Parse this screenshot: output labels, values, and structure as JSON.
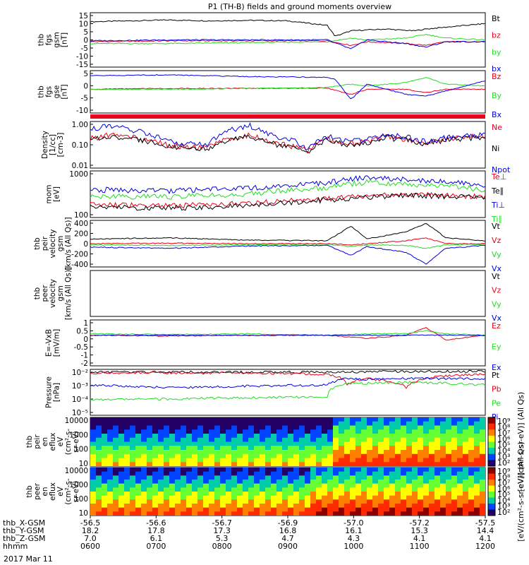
{
  "title": "P1 (TH-B) fields and ground moments overview",
  "date_label": "2017 Mar 11",
  "colors": {
    "black": "#000000",
    "red": "#e8001c",
    "green": "#22dd22",
    "blue": "#0000e0"
  },
  "chart_data": [
    {
      "type": "line",
      "id": "fgs_gsm",
      "ylabel": [
        "thb",
        "fgs",
        "gsm",
        "[nT]"
      ],
      "ylim": [
        -15,
        15
      ],
      "yticks": [
        "15",
        "10",
        "5",
        "0",
        "-5",
        "-10",
        "-15"
      ],
      "series": [
        {
          "name": "Bt",
          "color": "#000000",
          "x": [
            0,
            0.1,
            0.2,
            0.3,
            0.4,
            0.5,
            0.6,
            0.62,
            0.66,
            0.7,
            0.75,
            0.78,
            0.82,
            0.85,
            0.9,
            0.95,
            1.0
          ],
          "values": [
            10,
            10.5,
            11,
            10.5,
            10.8,
            10.5,
            8,
            2,
            5,
            5.5,
            6,
            5.5,
            5,
            6,
            7,
            8,
            9
          ]
        },
        {
          "name": "bz",
          "color": "#e8001c",
          "x": [
            0,
            0.2,
            0.4,
            0.6,
            0.66,
            0.7,
            0.8,
            0.85,
            0.9,
            1.0
          ],
          "values": [
            -1,
            -0.5,
            -0.5,
            -0.5,
            -3,
            -1,
            -2,
            -3,
            -1,
            -1
          ]
        },
        {
          "name": "by",
          "color": "#22dd22",
          "x": [
            0,
            0.2,
            0.4,
            0.6,
            0.66,
            0.7,
            0.8,
            0.85,
            0.9,
            1.0
          ],
          "values": [
            -2,
            -2,
            -1.5,
            -1,
            1,
            0,
            1,
            3,
            1,
            0
          ]
        },
        {
          "name": "bx",
          "color": "#0000e0",
          "x": [
            0,
            0.2,
            0.4,
            0.6,
            0.66,
            0.7,
            0.8,
            0.85,
            0.9,
            1.0
          ],
          "values": [
            -0.5,
            0,
            0,
            0,
            -5,
            0,
            -2,
            -4,
            -1,
            -1
          ]
        }
      ]
    },
    {
      "type": "line",
      "id": "fgs_gse",
      "ylabel": [
        "thb",
        "fgs",
        "gse",
        "[nT]"
      ],
      "ylim": [
        -15,
        10
      ],
      "yticks": [
        "5",
        "0",
        "-5",
        "-10"
      ],
      "series": [
        {
          "name": "Bz",
          "color": "#e8001c",
          "x": [
            0,
            0.2,
            0.4,
            0.6,
            0.66,
            0.7,
            0.8,
            0.85,
            0.9,
            1.0
          ],
          "values": [
            -1,
            -0.5,
            -0.5,
            -0.3,
            -4,
            -1,
            -1,
            -3,
            -1,
            -1
          ]
        },
        {
          "name": "By",
          "color": "#22dd22",
          "x": [
            0,
            0.2,
            0.4,
            0.6,
            0.66,
            0.7,
            0.8,
            0.85,
            0.9,
            1.0
          ],
          "values": [
            -1,
            -1,
            -0.5,
            0,
            2,
            1,
            3,
            6,
            2,
            1
          ]
        },
        {
          "name": "Bx",
          "color": "#0000e0",
          "x": [
            0,
            0.2,
            0.4,
            0.6,
            0.62,
            0.66,
            0.7,
            0.8,
            0.85,
            0.9,
            1.0
          ],
          "values": [
            7,
            7.5,
            6.5,
            6,
            5,
            -7,
            2,
            -4,
            -5,
            -2,
            4
          ]
        }
      ]
    },
    {
      "type": "line",
      "id": "density",
      "log": true,
      "ylabel": [
        "Density",
        "[1/cc]",
        "[cm-3]"
      ],
      "ylim": [
        0.01,
        1.2
      ],
      "yticks": [
        "1.00",
        "0.10",
        "0.01"
      ],
      "series": [
        {
          "name": "Ne",
          "color": "#e8001c",
          "x": [
            0,
            0.05,
            0.1,
            0.2,
            0.3,
            0.4,
            0.45,
            0.5,
            0.55,
            0.6,
            0.65,
            0.7,
            0.75,
            0.8,
            0.85,
            0.9,
            1.0
          ],
          "values": [
            0.2,
            0.3,
            0.25,
            0.1,
            0.08,
            0.3,
            0.15,
            0.1,
            0.06,
            0.2,
            0.12,
            0.15,
            0.25,
            0.2,
            0.12,
            0.2,
            0.3
          ]
        },
        {
          "name": "Ni",
          "color": "#000000",
          "x": [
            0,
            0.05,
            0.1,
            0.2,
            0.3,
            0.4,
            0.45,
            0.5,
            0.55,
            0.6,
            0.65,
            0.7,
            0.75,
            0.8,
            0.85,
            0.9,
            1.0
          ],
          "values": [
            0.18,
            0.25,
            0.2,
            0.09,
            0.07,
            0.25,
            0.13,
            0.09,
            0.05,
            0.18,
            0.11,
            0.13,
            0.22,
            0.18,
            0.11,
            0.18,
            0.25
          ]
        },
        {
          "name": "Npot",
          "color": "#0000e0",
          "x": [
            0,
            0.05,
            0.1,
            0.2,
            0.3,
            0.4,
            0.45,
            0.5,
            0.55,
            0.6,
            0.65,
            0.7,
            0.75,
            0.8,
            0.85,
            0.9,
            1.0
          ],
          "values": [
            0.5,
            0.8,
            0.5,
            0.15,
            0.1,
            0.8,
            0.3,
            0.2,
            0.06,
            0.25,
            0.15,
            0.18,
            0.3,
            0.25,
            0.14,
            0.22,
            0.3
          ]
        }
      ]
    },
    {
      "type": "line",
      "id": "temperature",
      "log": true,
      "ylabel": [
        "mom",
        "[eV]"
      ],
      "ylim": [
        20,
        3000
      ],
      "yticks": [
        "1000",
        "100"
      ],
      "series": [
        {
          "name": "Te⊥",
          "color": "#e8001c",
          "x": [
            0,
            0.2,
            0.4,
            0.6,
            0.7,
            0.8,
            1.0
          ],
          "values": [
            80,
            70,
            90,
            150,
            200,
            250,
            180
          ]
        },
        {
          "name": "Te∥",
          "color": "#000000",
          "x": [
            0,
            0.2,
            0.4,
            0.6,
            0.7,
            0.8,
            1.0
          ],
          "values": [
            60,
            55,
            70,
            130,
            180,
            220,
            170
          ]
        },
        {
          "name": "Ti⊥",
          "color": "#0000e0",
          "x": [
            0,
            0.2,
            0.4,
            0.6,
            0.7,
            0.8,
            1.0
          ],
          "values": [
            400,
            350,
            450,
            800,
            1500,
            1200,
            600
          ]
        },
        {
          "name": "Ti∥",
          "color": "#22dd22",
          "x": [
            0,
            0.2,
            0.4,
            0.6,
            0.7,
            0.8,
            1.0
          ],
          "values": [
            200,
            180,
            250,
            500,
            900,
            700,
            400
          ]
        }
      ]
    },
    {
      "type": "line",
      "id": "peir_vel",
      "ylabel": [
        "thb",
        "peir",
        "velocity",
        "gsm",
        "[km/s (All Qs)]"
      ],
      "ylim": [
        -400,
        400
      ],
      "yticks": [
        "400",
        "200",
        "0",
        "-200",
        "-400"
      ],
      "series": [
        {
          "name": "Vt",
          "color": "#000000",
          "x": [
            0,
            0.2,
            0.4,
            0.6,
            0.66,
            0.7,
            0.8,
            0.85,
            0.9,
            1.0
          ],
          "values": [
            80,
            100,
            60,
            50,
            300,
            80,
            200,
            350,
            100,
            50
          ]
        },
        {
          "name": "Vz",
          "color": "#e8001c",
          "x": [
            0,
            0.2,
            0.4,
            0.6,
            0.66,
            0.7,
            0.8,
            0.85,
            0.9,
            1.0
          ],
          "values": [
            0,
            10,
            0,
            0,
            -20,
            0,
            50,
            100,
            0,
            0
          ]
        },
        {
          "name": "Vy",
          "color": "#22dd22",
          "x": [
            0,
            0.2,
            0.4,
            0.6,
            0.66,
            0.7,
            0.8,
            0.85,
            0.9,
            1.0
          ],
          "values": [
            -20,
            -30,
            -20,
            -10,
            -50,
            -20,
            -30,
            -80,
            -20,
            -10
          ]
        },
        {
          "name": "Vx",
          "color": "#0000e0",
          "x": [
            0,
            0.2,
            0.4,
            0.6,
            0.66,
            0.7,
            0.8,
            0.85,
            0.9,
            1.0
          ],
          "values": [
            -60,
            -80,
            -40,
            -30,
            -200,
            -50,
            -150,
            -350,
            -80,
            -30
          ]
        }
      ]
    },
    {
      "type": "line",
      "id": "peer_vel",
      "ylabel": [
        "thb",
        "peer",
        "velocity",
        "gsm",
        "[km/s (All Qs)]"
      ],
      "ylim": [
        -400,
        400
      ],
      "yticks": [],
      "series": [
        {
          "name": "Vt",
          "color": "#000000",
          "x": [],
          "values": []
        },
        {
          "name": "Vz",
          "color": "#e8001c",
          "x": [],
          "values": []
        },
        {
          "name": "Vy",
          "color": "#22dd22",
          "x": [],
          "values": []
        },
        {
          "name": "Vx",
          "color": "#0000e0",
          "x": [],
          "values": []
        }
      ]
    },
    {
      "type": "line",
      "id": "efield",
      "ylabel": [
        "E=-VxB",
        "[mV/m]"
      ],
      "ylim": [
        -2,
        1
      ],
      "yticks": [
        "1",
        "0.5",
        "0",
        "-0.5",
        "-1",
        "-2"
      ],
      "series": [
        {
          "name": "Ez",
          "color": "#e8001c",
          "x": [
            0,
            0.2,
            0.4,
            0.6,
            0.7,
            0.8,
            0.85,
            0.9,
            1.0
          ],
          "values": [
            0,
            -0.05,
            0,
            0,
            -0.2,
            0,
            0.5,
            -0.3,
            0
          ]
        },
        {
          "name": "Ey",
          "color": "#22dd22",
          "x": [
            0,
            0.2,
            0.4,
            0.6,
            0.7,
            0.8,
            0.85,
            0.9,
            1.0
          ],
          "values": [
            0.1,
            0.05,
            0.1,
            0,
            0.1,
            0.1,
            0.3,
            0.1,
            0
          ]
        },
        {
          "name": "Ex",
          "color": "#0000e0",
          "x": [
            0,
            0.2,
            0.4,
            0.6,
            0.7,
            0.8,
            0.85,
            0.9,
            1.0
          ],
          "values": [
            0,
            0,
            0,
            0,
            0,
            0,
            0,
            0,
            0
          ]
        }
      ]
    },
    {
      "type": "line",
      "id": "pressure",
      "log": true,
      "ylabel": [
        "Pressure",
        "[nPa]"
      ],
      "ylim": [
        1e-06,
        0.1
      ],
      "yticks": [
        "10⁻²",
        "10⁻³",
        "10⁻⁴",
        "10⁻⁵"
      ],
      "series": [
        {
          "name": "Pt",
          "color": "#000000",
          "x": [
            0,
            0.2,
            0.4,
            0.6,
            0.8,
            1.0
          ],
          "values": [
            0.05,
            0.05,
            0.05,
            0.05,
            0.06,
            0.06
          ]
        },
        {
          "name": "Pb",
          "color": "#e8001c",
          "x": [
            0,
            0.2,
            0.4,
            0.6,
            0.65,
            0.7,
            0.8,
            0.85,
            0.9,
            1.0
          ],
          "values": [
            0.04,
            0.04,
            0.04,
            0.03,
            0.002,
            0.01,
            0.001,
            0.01,
            0.02,
            0.03
          ]
        },
        {
          "name": "Pe",
          "color": "#22dd22",
          "x": [
            0,
            0.2,
            0.4,
            0.6,
            0.65,
            0.7,
            0.8,
            1.0
          ],
          "values": [
            5e-05,
            6e-05,
            8e-05,
            0.0001,
            0.003,
            0.003,
            0.004,
            0.002
          ]
        },
        {
          "name": "Pi",
          "color": "#0000e0",
          "x": [
            0,
            0.2,
            0.4,
            0.6,
            0.65,
            0.7,
            0.8,
            1.0
          ],
          "values": [
            0.002,
            0.001,
            0.0015,
            0.002,
            0.01,
            0.008,
            0.01,
            0.01
          ]
        }
      ]
    },
    {
      "type": "heatmap",
      "id": "peir_en",
      "ylabel": [
        "thb",
        "peir",
        "en",
        "eflux",
        "eV",
        "(cm²-s-",
        "sr-eV)"
      ],
      "yticks": [
        "10000",
        "1000",
        "100",
        "10"
      ],
      "colorbar_label": "[eV/(cm²-s-sr-eV)] (All Qs)",
      "colorbar_ticks": [
        "10⁹",
        "10⁸",
        "10⁷",
        "10⁶",
        "10⁵",
        "10⁴",
        "10³",
        "10²"
      ]
    },
    {
      "type": "heatmap",
      "id": "peer_en",
      "ylabel": [
        "thb",
        "peer",
        "en",
        "eflux",
        "eV",
        "(cm²-s-",
        "sr-eV)"
      ],
      "yticks": [
        "10000",
        "1000",
        "100",
        "10"
      ],
      "colorbar_label": "[eV/(cm²-s-sr-eV)] (All Qs)",
      "colorbar_ticks": [
        "10⁹",
        "10⁸",
        "10⁷",
        "10⁶",
        "10⁵",
        "10⁴",
        "10³",
        "10²"
      ]
    }
  ],
  "xaxis": {
    "row_labels": [
      "thb_X-GSM",
      "thb_Y-GSM",
      "thb_Z-GSM",
      "hhmm"
    ],
    "columns": [
      [
        "-56.5",
        "18.2",
        "7.0",
        "0600"
      ],
      [
        "-56.6",
        "17.8",
        "6.1",
        "0700"
      ],
      [
        "-56.7",
        "17.3",
        "5.3",
        "0800"
      ],
      [
        "-56.9",
        "16.8",
        "4.7",
        "0900"
      ],
      [
        "-57.0",
        "16.1",
        "4.3",
        "1000"
      ],
      [
        "-57.2",
        "15.3",
        "4.1",
        "1100"
      ],
      [
        "-57.5",
        "14.4",
        "4.1",
        "1200"
      ]
    ]
  }
}
